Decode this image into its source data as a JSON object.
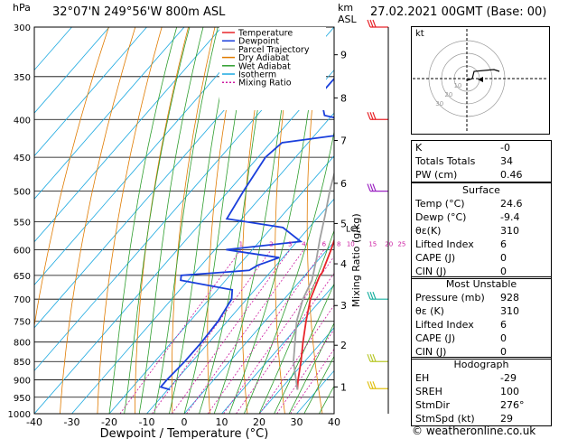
{
  "header": {
    "hpa_label": "hPa",
    "location": "32°07'N 249°56'W 800m ASL",
    "km_label": "km",
    "asl_label": "ASL",
    "datetime": "27.02.2021 00GMT (Base: 00)"
  },
  "legend": [
    {
      "label": "Temperature",
      "color": "#e8252a",
      "dash": ""
    },
    {
      "label": "Dewpoint",
      "color": "#1a3fdc",
      "dash": ""
    },
    {
      "label": "Parcel Trajectory",
      "color": "#a0a0a0",
      "dash": ""
    },
    {
      "label": "Dry Adiabat",
      "color": "#e07b00",
      "dash": ""
    },
    {
      "label": "Wet Adiabat",
      "color": "#2e9e2e",
      "dash": ""
    },
    {
      "label": "Isotherm",
      "color": "#1aa8e0",
      "dash": ""
    },
    {
      "label": "Mixing Ratio",
      "color": "#cc1aa0",
      "dash": "2,2"
    }
  ],
  "chart_data": {
    "type": "line",
    "title": "",
    "xlabel": "Dewpoint / Temperature (°C)",
    "ylabel": "hPa",
    "x_ticks": [
      -40,
      -30,
      -20,
      -10,
      0,
      10,
      20,
      30,
      40
    ],
    "p_ticks": [
      300,
      350,
      400,
      450,
      500,
      550,
      600,
      650,
      700,
      750,
      800,
      850,
      900,
      950,
      1000
    ],
    "xlim": [
      -40,
      40
    ],
    "plim": [
      300,
      1000
    ],
    "skew_deg_per_log": 90,
    "km_ticks": [
      {
        "label": "1",
        "p": 920
      },
      {
        "label": "2",
        "p": 808
      },
      {
        "label": "3",
        "p": 714
      },
      {
        "label": "4",
        "p": 627
      },
      {
        "label": "5",
        "p": 553
      },
      {
        "label": "6",
        "p": 488
      },
      {
        "label": "7",
        "p": 427
      },
      {
        "label": "8",
        "p": 374
      },
      {
        "label": "9",
        "p": 327
      }
    ],
    "lcl_label": "LCL",
    "mixing_ratio_axis_label": "Mixing Ratio (g/kg)",
    "mixing_ratio_labels": [
      "1",
      "2",
      "3",
      "4",
      "6",
      "8",
      "10",
      "15",
      "20",
      "25"
    ],
    "series": [
      {
        "name": "Temperature",
        "color": "#e8252a",
        "points": [
          [
            928,
            24.6
          ],
          [
            900,
            22.5
          ],
          [
            850,
            19
          ],
          [
            800,
            15
          ],
          [
            750,
            11
          ],
          [
            700,
            7
          ],
          [
            650,
            4
          ],
          [
            645,
            4
          ],
          [
            600,
            1
          ],
          [
            550,
            -3
          ],
          [
            500,
            -8
          ],
          [
            450,
            -13
          ],
          [
            400,
            -19
          ],
          [
            350,
            -26
          ],
          [
            300,
            -34
          ]
        ]
      },
      {
        "name": "Dewpoint",
        "color": "#1a3fdc",
        "points": [
          [
            928,
            -9.4
          ],
          [
            920,
            -12.5
          ],
          [
            900,
            -12.5
          ],
          [
            850,
            -12
          ],
          [
            800,
            -12
          ],
          [
            750,
            -12.5
          ],
          [
            700,
            -14
          ],
          [
            680,
            -16
          ],
          [
            660,
            -32
          ],
          [
            650,
            -33
          ],
          [
            640,
            -16
          ],
          [
            630,
            -15
          ],
          [
            615,
            -11
          ],
          [
            600,
            -27
          ],
          [
            585,
            -9
          ],
          [
            560,
            -17
          ],
          [
            545,
            -34
          ],
          [
            500,
            -36
          ],
          [
            450,
            -38
          ],
          [
            430,
            -37
          ],
          [
            412,
            -13
          ],
          [
            395,
            -32
          ],
          [
            370,
            -38
          ],
          [
            350,
            -38
          ],
          [
            345,
            -34
          ],
          [
            330,
            -30
          ],
          [
            318,
            -30
          ],
          [
            310,
            -36
          ],
          [
            300,
            -37
          ]
        ]
      },
      {
        "name": "Parcel Trajectory",
        "color": "#a0a0a0",
        "points": [
          [
            928,
            24.6
          ],
          [
            850,
            17
          ],
          [
            750,
            8.5
          ],
          [
            700,
            5
          ],
          [
            660,
            3
          ],
          [
            620,
            -0.5
          ],
          [
            580,
            -4.5
          ],
          [
            540,
            -8.5
          ],
          [
            500,
            -13
          ],
          [
            450,
            -18.5
          ],
          [
            400,
            -25
          ],
          [
            350,
            -32
          ],
          [
            300,
            -41
          ]
        ]
      }
    ]
  },
  "hodograph": {
    "label": "kt",
    "ring_labels": [
      "10",
      "20",
      "30"
    ]
  },
  "indices": {
    "k_label": "K",
    "k": "-0",
    "tt_label": "Totals Totals",
    "tt": "34",
    "pw_label": "PW (cm)",
    "pw": "0.46"
  },
  "surface": {
    "title": "Surface",
    "temp_label": "Temp (°C)",
    "temp": "24.6",
    "dewp_label": "Dewp (°C)",
    "dewp": "-9.4",
    "theta_label": "θε(K)",
    "theta": "310",
    "li_label": "Lifted Index",
    "li": "6",
    "cape_label": "CAPE (J)",
    "cape": "0",
    "cin_label": "CIN (J)",
    "cin": "0"
  },
  "most_unstable": {
    "title": "Most Unstable",
    "pressure_label": "Pressure (mb)",
    "pressure": "928",
    "theta_label": "θε (K)",
    "theta": "310",
    "li_label": "Lifted Index",
    "li": "6",
    "cape_label": "CAPE (J)",
    "cape": "0",
    "cin_label": "CIN (J)",
    "cin": "0"
  },
  "hodograph_table": {
    "title": "Hodograph",
    "eh_label": "EH",
    "eh": "-29",
    "sreh_label": "SREH",
    "sreh": "100",
    "stmdir_label": "StmDir",
    "stmdir": "276°",
    "stmspd_label": "StmSpd (kt)",
    "stmspd": "29"
  },
  "footer": "© weatheronline.co.uk"
}
